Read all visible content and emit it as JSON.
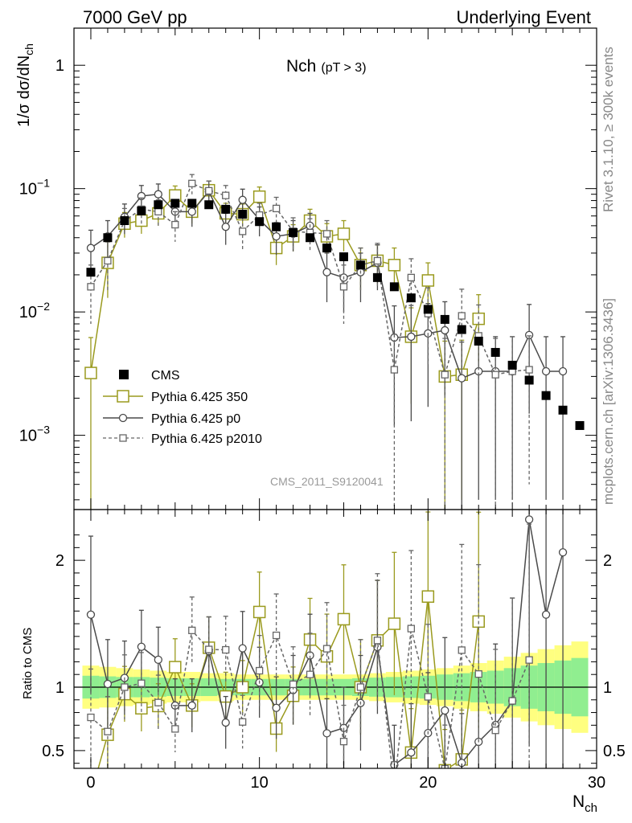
{
  "header": {
    "left": "7000 GeV pp",
    "right": "Underlying Event"
  },
  "side_labels": {
    "rivet": "Rivet 3.1.10, ≥ 300k events",
    "mcplots": "mcplots.cern.ch [arXiv:1306.3436]"
  },
  "watermark": "CMS_2011_S9120041",
  "chart_data": {
    "type": "scatter",
    "title": "Nch",
    "title_sub": "(pT >  3)",
    "xlabel": "N",
    "xlabel_sub": "ch",
    "ylabel": "1/σ dσ/dN",
    "ylabel_sub": "ch",
    "ratio_ylabel": "Ratio to CMS",
    "xlim": [
      -1,
      30
    ],
    "ylim": [
      0.00025,
      2.0
    ],
    "ylog": true,
    "ratio_ylim": [
      0.36,
      2.4
    ],
    "xticks": [
      0,
      10,
      20,
      30
    ],
    "xtick_labels": [
      "0",
      "10",
      "20",
      "30"
    ],
    "yticks": [
      {
        "v": 1,
        "base": "1",
        "exp": ""
      },
      {
        "v": 0.1,
        "base": "10",
        "exp": "−1"
      },
      {
        "v": 0.01,
        "base": "10",
        "exp": "−2"
      },
      {
        "v": 0.001,
        "base": "10",
        "exp": "−3"
      }
    ],
    "ratio_yticks": [
      {
        "v": 0.5,
        "label": "0.5"
      },
      {
        "v": 1,
        "label": "1"
      },
      {
        "v": 2,
        "label": "2"
      }
    ],
    "legend": {
      "cms": "CMS",
      "p350": "Pythia 6.425 350",
      "p0": "Pythia 6.425 p0",
      "p2010": "Pythia 6.425 p2010"
    },
    "data": {
      "x": [
        0,
        1,
        2,
        3,
        4,
        5,
        6,
        7,
        8,
        9,
        10,
        11,
        12,
        13,
        14,
        15,
        16,
        17,
        18,
        19,
        20,
        21,
        22,
        23,
        24,
        25,
        26,
        27,
        28,
        29
      ],
      "y": [
        0.021,
        0.04,
        0.055,
        0.066,
        0.074,
        0.076,
        0.076,
        0.074,
        0.068,
        0.062,
        0.054,
        0.049,
        0.044,
        0.04,
        0.033,
        0.028,
        0.024,
        0.019,
        0.016,
        0.013,
        0.0105,
        0.0087,
        0.0072,
        0.0058,
        0.0047,
        0.0037,
        0.0028,
        0.0021,
        0.0016,
        0.0012
      ],
      "band_inner": [
        0.09,
        0.085,
        0.08,
        0.08,
        0.075,
        0.07,
        0.07,
        0.07,
        0.065,
        0.065,
        0.065,
        0.065,
        0.065,
        0.065,
        0.065,
        0.065,
        0.07,
        0.075,
        0.08,
        0.085,
        0.09,
        0.1,
        0.11,
        0.12,
        0.13,
        0.15,
        0.17,
        0.19,
        0.21,
        0.23
      ],
      "band_outer": [
        0.17,
        0.16,
        0.15,
        0.14,
        0.13,
        0.12,
        0.12,
        0.11,
        0.11,
        0.1,
        0.1,
        0.1,
        0.1,
        0.1,
        0.1,
        0.1,
        0.1,
        0.11,
        0.12,
        0.13,
        0.14,
        0.15,
        0.17,
        0.19,
        0.21,
        0.24,
        0.27,
        0.3,
        0.33,
        0.36
      ]
    },
    "series": [
      {
        "key": "p350",
        "name": "Pythia 6.425 350",
        "color": "#9a9a1e",
        "marker": "square",
        "dash": "",
        "x": [
          0,
          1,
          2,
          3,
          4,
          5,
          6,
          7,
          8,
          9,
          10,
          11,
          12,
          13,
          14,
          15,
          16,
          17,
          18,
          19,
          20,
          21,
          22,
          23
        ],
        "y": [
          0.0032,
          0.025,
          0.052,
          0.055,
          0.063,
          0.088,
          0.065,
          0.097,
          0.063,
          0.062,
          0.086,
          0.033,
          0.041,
          0.055,
          0.041,
          0.043,
          0.024,
          0.026,
          0.024,
          0.0063,
          0.018,
          0.003,
          0.0031,
          0.0088
        ],
        "err": [
          0.003,
          0.012,
          0.012,
          0.012,
          0.013,
          0.017,
          0.013,
          0.018,
          0.013,
          0.013,
          0.017,
          0.009,
          0.01,
          0.013,
          0.011,
          0.012,
          0.009,
          0.009,
          0.009,
          0.0045,
          0.007,
          0.0028,
          0.0028,
          0.005
        ]
      },
      {
        "key": "p0",
        "name": "Pythia 6.425 p0",
        "color": "#4a4a4a",
        "marker": "circle",
        "dash": "",
        "x": [
          0,
          1,
          2,
          3,
          4,
          5,
          6,
          7,
          8,
          9,
          10,
          11,
          12,
          13,
          14,
          15,
          16,
          17,
          18,
          19,
          20,
          21,
          22,
          23,
          24,
          25,
          26,
          27,
          28
        ],
        "y": [
          0.033,
          0.041,
          0.059,
          0.087,
          0.09,
          0.065,
          0.065,
          0.095,
          0.049,
          0.081,
          0.056,
          0.041,
          0.043,
          0.05,
          0.021,
          0.019,
          0.021,
          0.025,
          0.0062,
          0.0063,
          0.0067,
          0.0071,
          0.0029,
          0.0033,
          0.0033,
          0.0033,
          0.0065,
          0.0033,
          0.0033
        ],
        "err": [
          0.013,
          0.014,
          0.016,
          0.019,
          0.019,
          0.016,
          0.016,
          0.02,
          0.014,
          0.018,
          0.015,
          0.012,
          0.012,
          0.013,
          0.009,
          0.009,
          0.009,
          0.01,
          0.005,
          0.005,
          0.005,
          0.005,
          0.0028,
          0.003,
          0.003,
          0.003,
          0.005,
          0.003,
          0.003
        ]
      },
      {
        "key": "p2010",
        "name": "Pythia 6.425 p2010",
        "color": "#666666",
        "marker": "square-small",
        "dash": "4,3",
        "x": [
          0,
          1,
          2,
          3,
          4,
          5,
          6,
          7,
          8,
          9,
          10,
          11,
          12,
          13,
          14,
          15,
          16,
          17,
          18,
          19,
          20,
          21,
          22,
          23,
          24,
          25,
          26
        ],
        "y": [
          0.016,
          0.026,
          0.055,
          0.068,
          0.065,
          0.051,
          0.11,
          0.096,
          0.088,
          0.045,
          0.061,
          0.069,
          0.045,
          0.044,
          0.043,
          0.016,
          0.024,
          0.026,
          0.0034,
          0.019,
          0.0097,
          0.0031,
          0.0093,
          0.0064,
          0.0031,
          0.0033,
          0.0034
        ],
        "err": [
          0.008,
          0.011,
          0.014,
          0.016,
          0.016,
          0.014,
          0.02,
          0.019,
          0.018,
          0.013,
          0.015,
          0.016,
          0.013,
          0.013,
          0.012,
          0.008,
          0.009,
          0.01,
          0.0032,
          0.008,
          0.006,
          0.003,
          0.006,
          0.005,
          0.003,
          0.003,
          0.003
        ]
      }
    ]
  }
}
